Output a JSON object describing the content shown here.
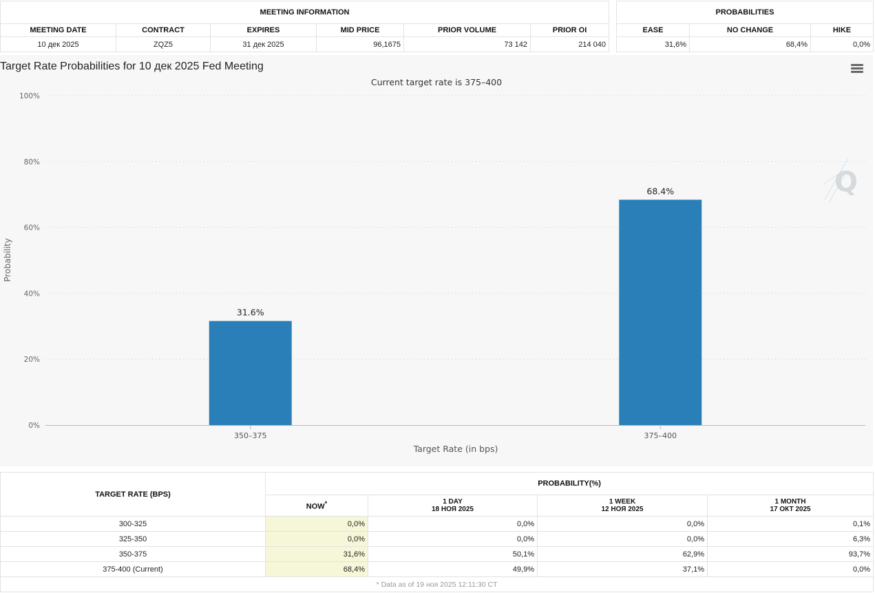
{
  "meeting_info": {
    "title": "MEETING INFORMATION",
    "headers": [
      "MEETING DATE",
      "CONTRACT",
      "EXPIRES",
      "MID PRICE",
      "PRIOR VOLUME",
      "PRIOR OI"
    ],
    "row": [
      "10 дек 2025",
      "ZQZ5",
      "31 дек 2025",
      "96,1675",
      "73 142",
      "214 040"
    ]
  },
  "probabilities": {
    "title": "PROBABILITIES",
    "headers": [
      "EASE",
      "NO CHANGE",
      "HIKE"
    ],
    "row": [
      "31,6%",
      "68,4%",
      "0,0%"
    ]
  },
  "chart": {
    "title": "Target Rate Probabilities for 10 дек 2025 Fed Meeting",
    "subtitle": "Current target rate is 375–400",
    "watermark": "Q"
  },
  "chart_data": {
    "type": "bar",
    "title": "Target Rate Probabilities for 10 дек 2025 Fed Meeting",
    "subtitle": "Current target rate is 375–400",
    "categories": [
      "350–375",
      "375–400"
    ],
    "values": [
      31.6,
      68.4
    ],
    "data_labels": [
      "31.6%",
      "68.4%"
    ],
    "xlabel": "Target Rate (in bps)",
    "ylabel": "Probability",
    "ylim": [
      0,
      100
    ],
    "yticks": [
      0,
      20,
      40,
      60,
      80,
      100
    ],
    "ytick_labels": [
      "0%",
      "20%",
      "40%",
      "60%",
      "80%",
      "100%"
    ],
    "bar_color": "#2a7fb8",
    "grid": true
  },
  "rate_table": {
    "target_header": "TARGET RATE (BPS)",
    "prob_header": "PROBABILITY(%)",
    "columns": [
      {
        "label": "NOW",
        "sup": "*",
        "date": ""
      },
      {
        "label": "1 DAY",
        "date": "18 НОЯ 2025"
      },
      {
        "label": "1 WEEK",
        "date": "12 НОЯ 2025"
      },
      {
        "label": "1 MONTH",
        "date": "17 ОКТ 2025"
      }
    ],
    "rows": [
      {
        "rate": "300-325",
        "values": [
          "0,0%",
          "0,0%",
          "0,0%",
          "0,1%"
        ]
      },
      {
        "rate": "325-350",
        "values": [
          "0,0%",
          "0,0%",
          "0,0%",
          "6,3%"
        ]
      },
      {
        "rate": "350-375",
        "values": [
          "31,6%",
          "50,1%",
          "62,9%",
          "93,7%"
        ]
      },
      {
        "rate": "375-400 (Current)",
        "values": [
          "68,4%",
          "49,9%",
          "37,1%",
          "0,0%"
        ]
      }
    ],
    "footnote": "* Data as of 19 ноя 2025 12:11:30 CT"
  }
}
